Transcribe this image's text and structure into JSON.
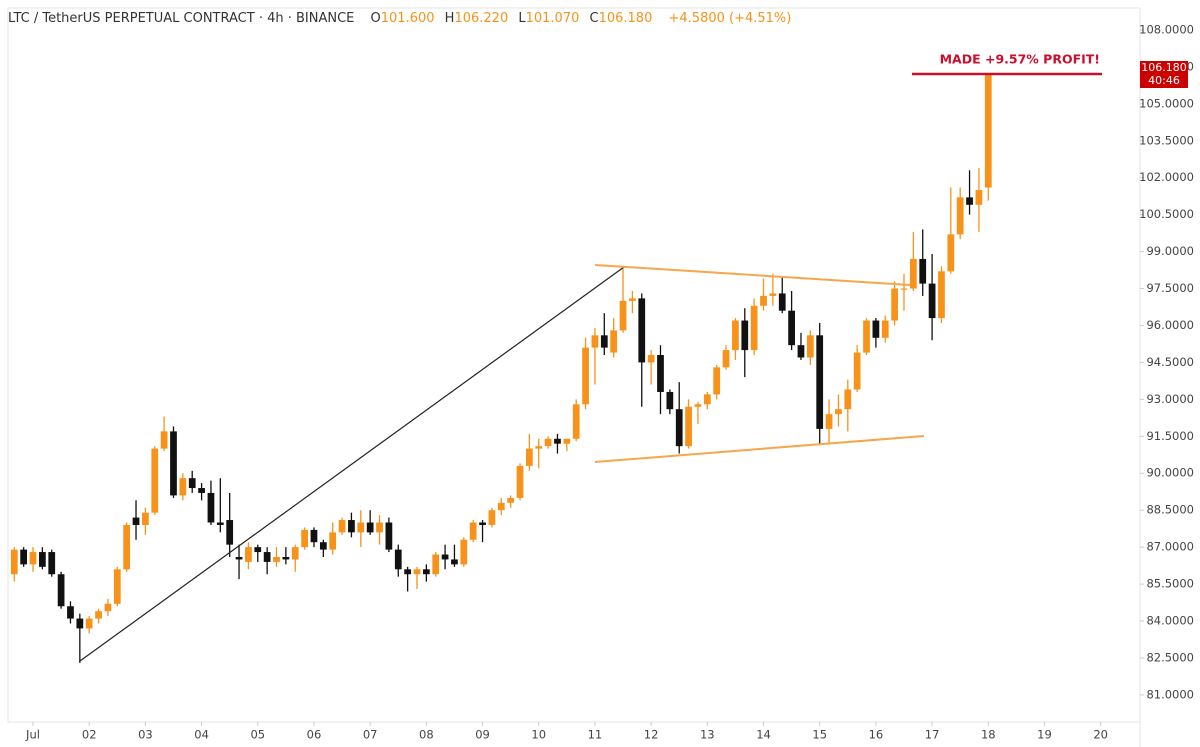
{
  "chart_data": {
    "type": "candlestick",
    "title": "LTC / TetherUS PERPETUAL CONTRACT · 4h · BINANCE",
    "legend": {
      "open_label": "O",
      "open": "101.600",
      "high_label": "H",
      "high": "106.220",
      "low_label": "L",
      "low": "101.070",
      "close_label": "C",
      "close": "106.180",
      "change": "+4.5800 (+4.51%)"
    },
    "last_price_label": "106.180",
    "countdown": "40:46",
    "annotation": "MADE +9.57% PROFIT!",
    "up_color": "#f7931a",
    "down_color": "#111111",
    "open": [
      85.9,
      86.9,
      86.3,
      86.8,
      86.8,
      85.9,
      84.6,
      84.1,
      83.7,
      84.1,
      84.4,
      84.7,
      86.1,
      88.2,
      87.9,
      88.4,
      91.0,
      91.7,
      89.1,
      89.8,
      89.4,
      89.2,
      88.0,
      88.1,
      86.6,
      86.4,
      87.0,
      86.8,
      86.4,
      86.6,
      86.5,
      87.0,
      87.7,
      87.2,
      86.9,
      87.6,
      88.1,
      87.6,
      88.0,
      87.6,
      88.0,
      86.9,
      86.1,
      85.9,
      86.1,
      85.9,
      86.7,
      86.5,
      86.3,
      87.3,
      88.0,
      87.9,
      88.5,
      88.8,
      89.0,
      90.3,
      91.0,
      91.1,
      91.4,
      91.2,
      91.4,
      92.8,
      95.1,
      95.6,
      94.9,
      95.8,
      97.0,
      97.1,
      94.5,
      94.8,
      93.3,
      92.6,
      91.1,
      92.7,
      92.8,
      93.2,
      94.3,
      95.0,
      96.2,
      95.0,
      96.8,
      97.2,
      97.3,
      96.6,
      95.2,
      94.7,
      95.6,
      91.8,
      92.4,
      92.6,
      93.4,
      94.9,
      96.2,
      95.5,
      96.2,
      97.5,
      97.5,
      98.7,
      97.7,
      96.3,
      98.2,
      99.7,
      101.2,
      100.9,
      101.6
    ],
    "high": [
      87.0,
      87.0,
      87.0,
      87.0,
      86.9,
      86.0,
      84.8,
      84.3,
      84.2,
      84.5,
      84.9,
      86.2,
      88.0,
      88.9,
      88.6,
      91.1,
      92.3,
      91.9,
      90.0,
      90.1,
      89.6,
      89.7,
      89.8,
      89.2,
      87.1,
      87.2,
      87.1,
      87.0,
      87.0,
      87.0,
      87.1,
      87.8,
      87.8,
      87.3,
      88.0,
      88.2,
      88.4,
      88.5,
      88.5,
      88.3,
      88.2,
      87.1,
      86.2,
      86.2,
      86.3,
      86.8,
      87.1,
      87.1,
      87.4,
      88.1,
      88.1,
      88.6,
      89.0,
      89.1,
      90.4,
      91.6,
      91.4,
      91.5,
      91.6,
      91.4,
      93.0,
      95.5,
      95.9,
      96.5,
      96.3,
      98.4,
      97.4,
      97.3,
      95.0,
      95.2,
      93.4,
      93.7,
      93.0,
      92.9,
      93.3,
      94.4,
      95.2,
      96.3,
      96.7,
      97.1,
      97.9,
      98.1,
      98.0,
      97.4,
      95.7,
      95.8,
      96.1,
      93.0,
      93.2,
      93.8,
      95.2,
      96.3,
      96.3,
      96.4,
      97.8,
      98.1,
      99.8,
      99.9,
      98.9,
      98.4,
      101.6,
      101.6,
      102.3,
      102.4,
      106.22
    ],
    "low": [
      85.6,
      86.2,
      86.0,
      86.1,
      85.8,
      84.5,
      83.9,
      82.3,
      83.5,
      83.9,
      84.2,
      84.6,
      86.0,
      87.3,
      87.5,
      88.3,
      90.9,
      89.0,
      88.9,
      89.2,
      88.9,
      87.9,
      87.6,
      86.6,
      85.7,
      86.1,
      86.4,
      85.9,
      86.2,
      86.3,
      86.0,
      86.9,
      87.0,
      86.6,
      86.7,
      87.5,
      87.4,
      87.0,
      87.5,
      87.1,
      86.8,
      85.8,
      85.2,
      85.3,
      85.6,
      85.8,
      86.1,
      86.2,
      86.2,
      87.2,
      87.2,
      87.8,
      88.3,
      88.6,
      88.9,
      90.1,
      90.2,
      91.0,
      90.8,
      90.9,
      91.3,
      92.6,
      93.6,
      94.8,
      94.7,
      95.7,
      96.5,
      92.7,
      93.6,
      92.4,
      92.4,
      90.8,
      91.0,
      92.0,
      92.6,
      93.0,
      94.2,
      94.6,
      93.9,
      94.8,
      96.6,
      96.8,
      96.5,
      95.0,
      94.6,
      94.4,
      91.2,
      91.2,
      91.9,
      91.7,
      93.3,
      94.8,
      95.1,
      95.3,
      96.0,
      96.6,
      97.4,
      97.2,
      95.4,
      96.1,
      98.1,
      99.5,
      100.5,
      99.8,
      101.07
    ],
    "close": [
      86.9,
      86.3,
      86.8,
      86.2,
      85.9,
      84.6,
      84.1,
      83.7,
      84.1,
      84.4,
      84.7,
      86.1,
      87.9,
      87.9,
      88.4,
      91.0,
      91.7,
      89.1,
      89.8,
      89.4,
      89.2,
      88.0,
      87.9,
      87.1,
      86.5,
      87.0,
      86.8,
      86.4,
      86.6,
      86.5,
      87.0,
      87.7,
      87.2,
      86.9,
      87.6,
      88.1,
      87.6,
      88.0,
      87.6,
      88.0,
      86.9,
      86.1,
      85.9,
      86.1,
      85.9,
      86.7,
      86.5,
      86.3,
      87.3,
      88.0,
      87.9,
      88.5,
      88.8,
      89.0,
      90.3,
      91.0,
      91.1,
      91.4,
      91.2,
      91.4,
      92.8,
      95.1,
      95.6,
      95.1,
      95.8,
      97.0,
      97.1,
      94.5,
      94.8,
      93.3,
      92.6,
      91.1,
      92.7,
      92.8,
      93.2,
      94.3,
      95.0,
      96.2,
      95.0,
      96.8,
      97.2,
      97.3,
      96.6,
      95.2,
      94.7,
      95.6,
      91.8,
      92.4,
      92.6,
      93.4,
      94.9,
      96.2,
      95.5,
      96.2,
      97.5,
      97.5,
      98.7,
      97.7,
      96.3,
      98.2,
      99.7,
      101.2,
      100.9,
      101.5,
      106.18
    ],
    "xlim": [
      -0.67,
      120.2
    ],
    "xticks": [
      {
        "value": 2,
        "label": "Jul"
      },
      {
        "value": 8,
        "label": "02"
      },
      {
        "value": 14,
        "label": "03"
      },
      {
        "value": 20,
        "label": "04"
      },
      {
        "value": 26,
        "label": "05"
      },
      {
        "value": 32,
        "label": "06"
      },
      {
        "value": 38,
        "label": "07"
      },
      {
        "value": 44,
        "label": "08"
      },
      {
        "value": 50,
        "label": "09"
      },
      {
        "value": 56,
        "label": "10"
      },
      {
        "value": 62,
        "label": "11"
      },
      {
        "value": 68,
        "label": "12"
      },
      {
        "value": 74,
        "label": "13"
      },
      {
        "value": 80,
        "label": "14"
      },
      {
        "value": 86,
        "label": "15"
      },
      {
        "value": 92,
        "label": "16"
      },
      {
        "value": 98,
        "label": "17"
      },
      {
        "value": 104,
        "label": "18"
      },
      {
        "value": 110,
        "label": "19"
      },
      {
        "value": 116,
        "label": "20"
      }
    ],
    "ylim": [
      79.9,
      108.89
    ],
    "yticks": [
      {
        "value": 108,
        "label": "108.0000"
      },
      {
        "value": 106.5,
        "label": "106.5000"
      },
      {
        "value": 105,
        "label": "105.0000"
      },
      {
        "value": 103.5,
        "label": "103.5000"
      },
      {
        "value": 102,
        "label": "102.0000"
      },
      {
        "value": 100.5,
        "label": "100.5000"
      },
      {
        "value": 99,
        "label": "99.0000"
      },
      {
        "value": 97.5,
        "label": "97.5000"
      },
      {
        "value": 96,
        "label": "96.0000"
      },
      {
        "value": 94.5,
        "label": "94.5000"
      },
      {
        "value": 93,
        "label": "93.0000"
      },
      {
        "value": 91.5,
        "label": "91.5000"
      },
      {
        "value": 90,
        "label": "90.0000"
      },
      {
        "value": 88.5,
        "label": "88.5000"
      },
      {
        "value": 87,
        "label": "87.0000"
      },
      {
        "value": 85.5,
        "label": "85.5000"
      },
      {
        "value": 84,
        "label": "84.0000"
      },
      {
        "value": 82.5,
        "label": "82.5000"
      },
      {
        "value": 81,
        "label": "81.0000"
      }
    ],
    "grid": false
  }
}
